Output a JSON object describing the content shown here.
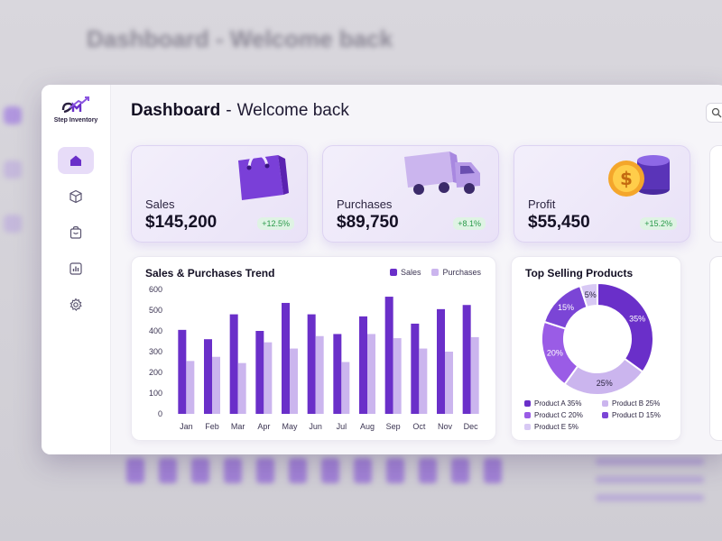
{
  "background": {
    "title": "Dashboard - Welcome back"
  },
  "app": {
    "name": "Step Inventory",
    "logo_mark": "SM"
  },
  "header": {
    "title": "Dashboard",
    "separator": "-",
    "subtitle": "Welcome back"
  },
  "sidebar": {
    "items": [
      {
        "name": "home",
        "icon": "home-icon",
        "active": true
      },
      {
        "name": "inventory",
        "icon": "box-icon",
        "active": false
      },
      {
        "name": "orders",
        "icon": "bag-icon",
        "active": false
      },
      {
        "name": "reports",
        "icon": "chart-icon",
        "active": false
      },
      {
        "name": "settings",
        "icon": "gear-icon",
        "active": false
      }
    ]
  },
  "stats": [
    {
      "label": "Sales",
      "value": "$145,200",
      "change": "+12.5%",
      "icon": "shopping-bag-icon"
    },
    {
      "label": "Purchases",
      "value": "$89,750",
      "change": "+8.1%",
      "icon": "delivery-truck-icon"
    },
    {
      "label": "Profit",
      "value": "$55,450",
      "change": "+15.2%",
      "icon": "coins-icon"
    }
  ],
  "colors": {
    "accent": "#6a2fc9",
    "accent_light": "#cbb5ee",
    "positive": "#2a9a4a"
  },
  "trend": {
    "title": "Sales & Purchases Trend",
    "legend": [
      "Sales",
      "Purchases"
    ]
  },
  "top_products": {
    "title": "Top Selling Products"
  },
  "chart_data": [
    {
      "type": "bar",
      "title": "Sales & Purchases Trend",
      "categories": [
        "Jan",
        "Feb",
        "Mar",
        "Apr",
        "May",
        "Jun",
        "Jul",
        "Aug",
        "Sep",
        "Oct",
        "Nov",
        "Dec"
      ],
      "series": [
        {
          "name": "Sales",
          "color": "#6a2fc9",
          "values": [
            405,
            360,
            480,
            400,
            535,
            480,
            385,
            470,
            565,
            435,
            505,
            525
          ]
        },
        {
          "name": "Purchases",
          "color": "#cbb5ee",
          "values": [
            255,
            275,
            245,
            345,
            315,
            375,
            250,
            385,
            365,
            315,
            300,
            370
          ]
        }
      ],
      "yticks": [
        0,
        100,
        200,
        300,
        400,
        500,
        600
      ],
      "ylim": [
        0,
        600
      ],
      "legend_position": "top-right"
    },
    {
      "type": "pie",
      "title": "Top Selling Products",
      "labels": [
        "Product A",
        "Product B",
        "Product C",
        "Product D",
        "Product E"
      ],
      "values": [
        35,
        25,
        20,
        15,
        5
      ],
      "value_labels": [
        "35%",
        "25%",
        "20%",
        "15%",
        "5%"
      ],
      "colors": [
        "#6a2fc9",
        "#cbb5ee",
        "#9a5ce6",
        "#7b45d6",
        "#d8c9f4"
      ],
      "legend_position": "bottom"
    }
  ]
}
